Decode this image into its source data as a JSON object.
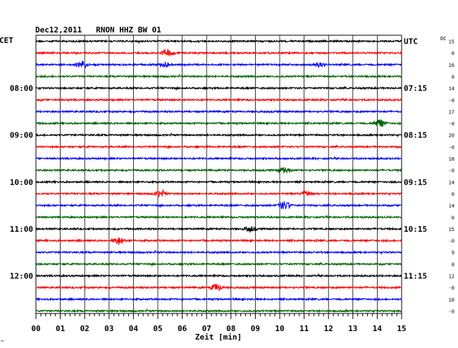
{
  "header": {
    "title": "Dec12,2011   RNON HHZ BW 01",
    "left_timezone": "CET",
    "right_timezone": "UTC",
    "dc_label": "DC"
  },
  "chart_data": {
    "type": "line",
    "title": "Dec12,2011   RNON HHZ BW 01",
    "xlabel": "Zeit [min]",
    "xlim": [
      0,
      15
    ],
    "x_ticks": [
      "00",
      "01",
      "02",
      "03",
      "04",
      "05",
      "06",
      "07",
      "08",
      "09",
      "10",
      "11",
      "12",
      "13",
      "14",
      "15"
    ],
    "grid": true,
    "trace_colors": [
      "#000000",
      "#ff0000",
      "#0000ff",
      "#006400"
    ],
    "left_hour_labels": [
      {
        "trace": 4,
        "label": "08:00"
      },
      {
        "trace": 8,
        "label": "09:00"
      },
      {
        "trace": 12,
        "label": "10:00"
      },
      {
        "trace": 16,
        "label": "11:00"
      },
      {
        "trace": 20,
        "label": "12:00"
      }
    ],
    "right_hour_labels": [
      {
        "trace": 0,
        "label": "UTC"
      },
      {
        "trace": 4,
        "label": "07:15"
      },
      {
        "trace": 8,
        "label": "08:15"
      },
      {
        "trace": 12,
        "label": "09:15"
      },
      {
        "trace": 16,
        "label": "10:15"
      },
      {
        "trace": 20,
        "label": "11:15"
      }
    ],
    "dc_offsets": [
      "15",
      "0",
      "16",
      "0",
      "14",
      "-0",
      "17",
      "-0",
      "20",
      "-0",
      "18",
      "-0",
      "14",
      "0",
      "14",
      "0",
      "15",
      "-0",
      "9",
      "0",
      "12",
      "-0",
      "10",
      "-0"
    ],
    "events": [
      {
        "trace": 1,
        "minute": 5.4,
        "strength": 2.2
      },
      {
        "trace": 2,
        "minute": 1.9,
        "strength": 2.2
      },
      {
        "trace": 2,
        "minute": 5.3,
        "strength": 1.6
      },
      {
        "trace": 2,
        "minute": 11.6,
        "strength": 1.5
      },
      {
        "trace": 7,
        "minute": 14.1,
        "strength": 2.6
      },
      {
        "trace": 11,
        "minute": 10.2,
        "strength": 1.8
      },
      {
        "trace": 13,
        "minute": 5.1,
        "strength": 2.0
      },
      {
        "trace": 13,
        "minute": 11.1,
        "strength": 1.5
      },
      {
        "trace": 14,
        "minute": 10.2,
        "strength": 2.6
      },
      {
        "trace": 16,
        "minute": 8.8,
        "strength": 1.6
      },
      {
        "trace": 17,
        "minute": 3.4,
        "strength": 2.4
      },
      {
        "trace": 21,
        "minute": 7.4,
        "strength": 2.3
      }
    ],
    "series_count": 24
  }
}
